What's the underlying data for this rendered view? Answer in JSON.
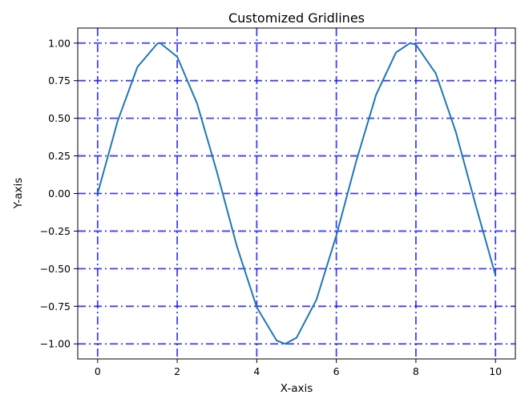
{
  "chart_data": {
    "type": "line",
    "title": "Customized Gridlines",
    "xlabel": "X-axis",
    "ylabel": "Y-axis",
    "xlim": [
      -0.5,
      10.5
    ],
    "ylim": [
      -1.1,
      1.1
    ],
    "x_ticks": [
      0,
      2,
      4,
      6,
      8,
      10
    ],
    "x_tick_labels": [
      "0",
      "2",
      "4",
      "6",
      "8",
      "10"
    ],
    "y_ticks": [
      1.0,
      0.75,
      0.5,
      0.25,
      0.0,
      -0.25,
      -0.5,
      -0.75,
      -1.0
    ],
    "y_tick_labels": [
      "1.00",
      "0.75",
      "0.50",
      "0.25",
      "0.00",
      "−0.25",
      "−0.50",
      "−0.75",
      "−1.00"
    ],
    "grid": true,
    "grid_style": "dash-dot",
    "grid_color": "#0000ff",
    "series": [
      {
        "color": "#1f77b4",
        "x": [
          0,
          0.5,
          1,
          1.5,
          1.5708,
          2,
          2.5,
          3,
          3.5,
          4,
          4.5,
          4.7124,
          5,
          5.5,
          6,
          6.5,
          7,
          7.5,
          7.854,
          8,
          8.5,
          9,
          9.5,
          10
        ],
        "y": [
          0.0,
          0.479,
          0.841,
          0.997,
          1.0,
          0.909,
          0.598,
          0.141,
          -0.351,
          -0.757,
          -0.978,
          -1.0,
          -0.959,
          -0.706,
          -0.279,
          0.215,
          0.657,
          0.938,
          1.0,
          0.989,
          0.798,
          0.412,
          -0.075,
          -0.544
        ]
      }
    ]
  }
}
